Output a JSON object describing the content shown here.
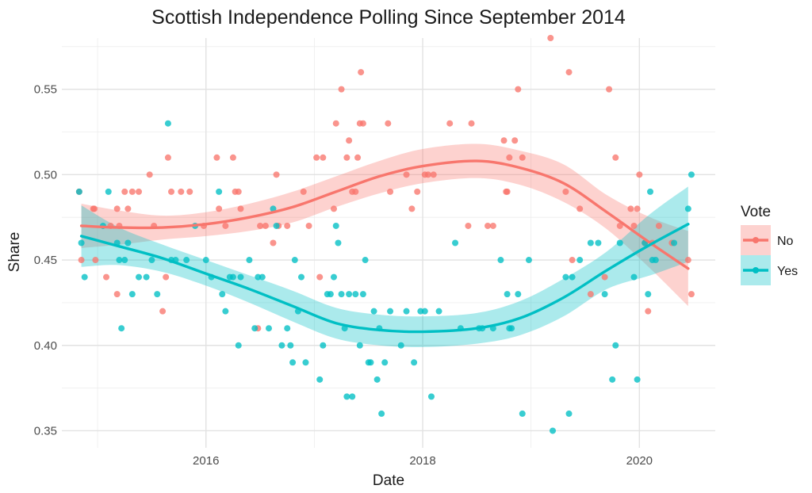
{
  "chart_data": {
    "type": "scatter",
    "title": "Scottish Independence Polling Since September 2014",
    "xlabel": "Date",
    "ylabel": "Share",
    "xlim": [
      2014.67,
      2020.7
    ],
    "ylim": [
      0.34,
      0.58
    ],
    "x_ticks": [
      2016,
      2018,
      2020
    ],
    "x_tick_labels": [
      "2016",
      "2018",
      "2020"
    ],
    "y_ticks": [
      0.35,
      0.4,
      0.45,
      0.5,
      0.55
    ],
    "y_tick_labels": [
      "0.35",
      "0.40",
      "0.45",
      "0.50",
      "0.55"
    ],
    "grid": true,
    "legend": {
      "title": "Vote",
      "position": "right"
    },
    "series": [
      {
        "name": "No",
        "color": "#F8766D",
        "points": [
          [
            2014.83,
            0.49
          ],
          [
            2014.85,
            0.45
          ],
          [
            2014.96,
            0.48
          ],
          [
            2014.97,
            0.48
          ],
          [
            2014.98,
            0.45
          ],
          [
            2015.08,
            0.44
          ],
          [
            2015.12,
            0.47
          ],
          [
            2015.18,
            0.48
          ],
          [
            2015.18,
            0.43
          ],
          [
            2015.2,
            0.47
          ],
          [
            2015.25,
            0.49
          ],
          [
            2015.28,
            0.48
          ],
          [
            2015.32,
            0.49
          ],
          [
            2015.38,
            0.49
          ],
          [
            2015.48,
            0.5
          ],
          [
            2015.52,
            0.47
          ],
          [
            2015.6,
            0.42
          ],
          [
            2015.63,
            0.44
          ],
          [
            2015.65,
            0.51
          ],
          [
            2015.68,
            0.49
          ],
          [
            2015.77,
            0.49
          ],
          [
            2015.85,
            0.49
          ],
          [
            2015.98,
            0.47
          ],
          [
            2016.1,
            0.51
          ],
          [
            2016.12,
            0.48
          ],
          [
            2016.18,
            0.47
          ],
          [
            2016.25,
            0.51
          ],
          [
            2016.27,
            0.49
          ],
          [
            2016.3,
            0.49
          ],
          [
            2016.32,
            0.48
          ],
          [
            2016.48,
            0.41
          ],
          [
            2016.5,
            0.47
          ],
          [
            2016.55,
            0.47
          ],
          [
            2016.62,
            0.46
          ],
          [
            2016.65,
            0.5
          ],
          [
            2016.67,
            0.47
          ],
          [
            2016.75,
            0.47
          ],
          [
            2016.9,
            0.49
          ],
          [
            2016.95,
            0.47
          ],
          [
            2017.02,
            0.51
          ],
          [
            2017.05,
            0.44
          ],
          [
            2017.08,
            0.51
          ],
          [
            2017.18,
            0.48
          ],
          [
            2017.2,
            0.53
          ],
          [
            2017.25,
            0.55
          ],
          [
            2017.3,
            0.51
          ],
          [
            2017.32,
            0.52
          ],
          [
            2017.35,
            0.49
          ],
          [
            2017.38,
            0.49
          ],
          [
            2017.4,
            0.51
          ],
          [
            2017.42,
            0.53
          ],
          [
            2017.43,
            0.56
          ],
          [
            2017.45,
            0.53
          ],
          [
            2017.68,
            0.53
          ],
          [
            2017.7,
            0.49
          ],
          [
            2017.85,
            0.5
          ],
          [
            2017.9,
            0.48
          ],
          [
            2017.95,
            0.49
          ],
          [
            2018.02,
            0.5
          ],
          [
            2018.05,
            0.5
          ],
          [
            2018.1,
            0.5
          ],
          [
            2018.25,
            0.53
          ],
          [
            2018.42,
            0.47
          ],
          [
            2018.45,
            0.53
          ],
          [
            2018.6,
            0.47
          ],
          [
            2018.65,
            0.47
          ],
          [
            2018.75,
            0.52
          ],
          [
            2018.77,
            0.49
          ],
          [
            2018.78,
            0.49
          ],
          [
            2018.8,
            0.51
          ],
          [
            2018.85,
            0.52
          ],
          [
            2018.88,
            0.55
          ],
          [
            2018.92,
            0.51
          ],
          [
            2019.18,
            0.58
          ],
          [
            2019.32,
            0.49
          ],
          [
            2019.35,
            0.56
          ],
          [
            2019.38,
            0.45
          ],
          [
            2019.45,
            0.48
          ],
          [
            2019.55,
            0.43
          ],
          [
            2019.68,
            0.44
          ],
          [
            2019.72,
            0.55
          ],
          [
            2019.78,
            0.51
          ],
          [
            2019.82,
            0.47
          ],
          [
            2019.92,
            0.48
          ],
          [
            2019.95,
            0.47
          ],
          [
            2019.98,
            0.48
          ],
          [
            2020.0,
            0.5
          ],
          [
            2020.05,
            0.46
          ],
          [
            2020.08,
            0.42
          ],
          [
            2020.12,
            0.46
          ],
          [
            2020.18,
            0.47
          ],
          [
            2020.3,
            0.46
          ],
          [
            2020.45,
            0.45
          ],
          [
            2020.48,
            0.43
          ]
        ]
      },
      {
        "name": "Yes",
        "color": "#00BFC4",
        "points": [
          [
            2014.83,
            0.49
          ],
          [
            2014.85,
            0.46
          ],
          [
            2014.88,
            0.44
          ],
          [
            2015.05,
            0.47
          ],
          [
            2015.1,
            0.49
          ],
          [
            2015.18,
            0.46
          ],
          [
            2015.2,
            0.45
          ],
          [
            2015.22,
            0.41
          ],
          [
            2015.25,
            0.45
          ],
          [
            2015.28,
            0.46
          ],
          [
            2015.32,
            0.43
          ],
          [
            2015.38,
            0.44
          ],
          [
            2015.45,
            0.44
          ],
          [
            2015.5,
            0.45
          ],
          [
            2015.55,
            0.43
          ],
          [
            2015.65,
            0.53
          ],
          [
            2015.68,
            0.45
          ],
          [
            2015.72,
            0.45
          ],
          [
            2015.82,
            0.45
          ],
          [
            2015.9,
            0.47
          ],
          [
            2016.0,
            0.45
          ],
          [
            2016.05,
            0.44
          ],
          [
            2016.12,
            0.49
          ],
          [
            2016.15,
            0.43
          ],
          [
            2016.18,
            0.42
          ],
          [
            2016.22,
            0.44
          ],
          [
            2016.25,
            0.44
          ],
          [
            2016.3,
            0.4
          ],
          [
            2016.32,
            0.44
          ],
          [
            2016.4,
            0.45
          ],
          [
            2016.45,
            0.41
          ],
          [
            2016.48,
            0.44
          ],
          [
            2016.52,
            0.44
          ],
          [
            2016.58,
            0.41
          ],
          [
            2016.62,
            0.48
          ],
          [
            2016.65,
            0.47
          ],
          [
            2016.7,
            0.4
          ],
          [
            2016.75,
            0.41
          ],
          [
            2016.78,
            0.4
          ],
          [
            2016.8,
            0.39
          ],
          [
            2016.82,
            0.45
          ],
          [
            2016.85,
            0.42
          ],
          [
            2016.88,
            0.44
          ],
          [
            2016.92,
            0.39
          ],
          [
            2017.05,
            0.38
          ],
          [
            2017.08,
            0.4
          ],
          [
            2017.12,
            0.43
          ],
          [
            2017.15,
            0.43
          ],
          [
            2017.18,
            0.44
          ],
          [
            2017.2,
            0.47
          ],
          [
            2017.22,
            0.46
          ],
          [
            2017.25,
            0.43
          ],
          [
            2017.28,
            0.41
          ],
          [
            2017.3,
            0.37
          ],
          [
            2017.32,
            0.43
          ],
          [
            2017.35,
            0.37
          ],
          [
            2017.38,
            0.43
          ],
          [
            2017.42,
            0.4
          ],
          [
            2017.45,
            0.43
          ],
          [
            2017.47,
            0.45
          ],
          [
            2017.5,
            0.39
          ],
          [
            2017.52,
            0.39
          ],
          [
            2017.55,
            0.42
          ],
          [
            2017.58,
            0.38
          ],
          [
            2017.6,
            0.41
          ],
          [
            2017.62,
            0.36
          ],
          [
            2017.65,
            0.39
          ],
          [
            2017.7,
            0.42
          ],
          [
            2017.8,
            0.4
          ],
          [
            2017.85,
            0.42
          ],
          [
            2017.92,
            0.39
          ],
          [
            2017.98,
            0.42
          ],
          [
            2018.02,
            0.42
          ],
          [
            2018.08,
            0.37
          ],
          [
            2018.15,
            0.42
          ],
          [
            2018.3,
            0.46
          ],
          [
            2018.35,
            0.41
          ],
          [
            2018.52,
            0.41
          ],
          [
            2018.55,
            0.41
          ],
          [
            2018.65,
            0.41
          ],
          [
            2018.72,
            0.45
          ],
          [
            2018.78,
            0.43
          ],
          [
            2018.8,
            0.41
          ],
          [
            2018.82,
            0.41
          ],
          [
            2018.88,
            0.43
          ],
          [
            2018.92,
            0.36
          ],
          [
            2018.98,
            0.45
          ],
          [
            2019.2,
            0.35
          ],
          [
            2019.32,
            0.44
          ],
          [
            2019.35,
            0.36
          ],
          [
            2019.38,
            0.44
          ],
          [
            2019.45,
            0.45
          ],
          [
            2019.55,
            0.46
          ],
          [
            2019.62,
            0.46
          ],
          [
            2019.68,
            0.43
          ],
          [
            2019.75,
            0.38
          ],
          [
            2019.78,
            0.4
          ],
          [
            2019.82,
            0.46
          ],
          [
            2019.95,
            0.44
          ],
          [
            2019.98,
            0.38
          ],
          [
            2020.05,
            0.46
          ],
          [
            2020.08,
            0.43
          ],
          [
            2020.1,
            0.49
          ],
          [
            2020.12,
            0.45
          ],
          [
            2020.15,
            0.45
          ],
          [
            2020.32,
            0.46
          ],
          [
            2020.45,
            0.48
          ],
          [
            2020.48,
            0.5
          ]
        ]
      }
    ],
    "trend_lines": [
      {
        "name": "No",
        "color": "#F8766D",
        "x": [
          2014.85,
          2015.2,
          2015.6,
          2016.0,
          2016.4,
          2016.8,
          2017.2,
          2017.6,
          2018.0,
          2018.5,
          2018.9,
          2019.3,
          2019.7,
          2020.1,
          2020.45
        ],
        "y": [
          0.47,
          0.469,
          0.469,
          0.471,
          0.475,
          0.481,
          0.49,
          0.499,
          0.505,
          0.508,
          0.504,
          0.495,
          0.478,
          0.46,
          0.445
        ],
        "ymin": [
          0.457,
          0.459,
          0.462,
          0.464,
          0.467,
          0.472,
          0.481,
          0.489,
          0.495,
          0.498,
          0.494,
          0.484,
          0.468,
          0.445,
          0.423
        ],
        "ymax": [
          0.483,
          0.479,
          0.476,
          0.478,
          0.483,
          0.49,
          0.499,
          0.508,
          0.515,
          0.518,
          0.514,
          0.506,
          0.488,
          0.475,
          0.467
        ]
      },
      {
        "name": "Yes",
        "color": "#00BFC4",
        "x": [
          2014.85,
          2015.2,
          2015.6,
          2016.0,
          2016.4,
          2016.8,
          2017.2,
          2017.6,
          2018.0,
          2018.5,
          2018.9,
          2019.3,
          2019.7,
          2020.1,
          2020.45
        ],
        "y": [
          0.464,
          0.458,
          0.451,
          0.442,
          0.433,
          0.423,
          0.413,
          0.409,
          0.408,
          0.41,
          0.416,
          0.428,
          0.444,
          0.459,
          0.471
        ],
        "ymin": [
          0.446,
          0.447,
          0.443,
          0.435,
          0.425,
          0.414,
          0.404,
          0.4,
          0.399,
          0.401,
          0.406,
          0.417,
          0.433,
          0.441,
          0.449
        ],
        "ymax": [
          0.482,
          0.469,
          0.459,
          0.45,
          0.441,
          0.432,
          0.422,
          0.418,
          0.417,
          0.419,
          0.426,
          0.439,
          0.455,
          0.477,
          0.493
        ]
      }
    ]
  }
}
